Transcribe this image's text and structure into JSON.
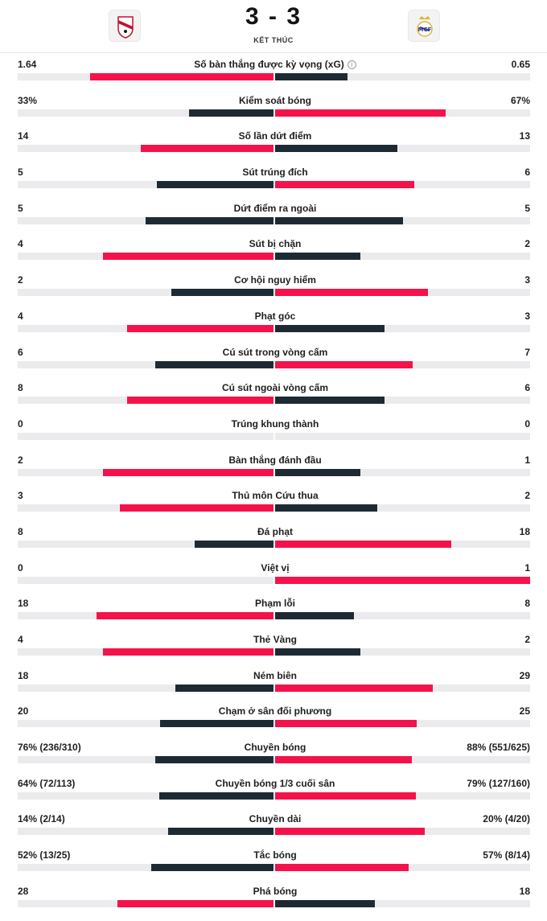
{
  "match": {
    "score": "3 - 3",
    "status": "KẾT THÚC",
    "home_crest_icon": "rayo-vallecano-crest-icon",
    "away_crest_icon": "real-madrid-crest-icon"
  },
  "colors": {
    "red": "#f5124a",
    "dark": "#1e2a33",
    "track": "#ebebed"
  },
  "stats": [
    {
      "label": "Số bàn thắng được kỳ vọng (xG)",
      "home": "1.64",
      "away": "0.65",
      "home_share": 0.716,
      "away_share": 0.284,
      "info_icon": "info-icon",
      "info_glyph": "i"
    },
    {
      "label": "Kiểm soát bóng",
      "home": "33%",
      "away": "67%",
      "home_share": 0.33,
      "away_share": 0.67
    },
    {
      "label": "Số lần dứt điểm",
      "home": "14",
      "away": "13",
      "home_share": 0.519,
      "away_share": 0.481
    },
    {
      "label": "Sút trúng đích",
      "home": "5",
      "away": "6",
      "home_share": 0.455,
      "away_share": 0.545
    },
    {
      "label": "Dứt điểm ra ngoài",
      "home": "5",
      "away": "5",
      "home_share": 0.5,
      "away_share": 0.5
    },
    {
      "label": "Sút bị chặn",
      "home": "4",
      "away": "2",
      "home_share": 0.667,
      "away_share": 0.333
    },
    {
      "label": "Cơ hội nguy hiểm",
      "home": "2",
      "away": "3",
      "home_share": 0.4,
      "away_share": 0.6
    },
    {
      "label": "Phạt góc",
      "home": "4",
      "away": "3",
      "home_share": 0.571,
      "away_share": 0.429
    },
    {
      "label": "Cú sút trong vòng cấm",
      "home": "6",
      "away": "7",
      "home_share": 0.462,
      "away_share": 0.538
    },
    {
      "label": "Cú sút ngoài vòng cấm",
      "home": "8",
      "away": "6",
      "home_share": 0.571,
      "away_share": 0.429
    },
    {
      "label": "Trúng khung thành",
      "home": "0",
      "away": "0",
      "home_share": 0,
      "away_share": 0
    },
    {
      "label": "Bàn thắng đánh đầu",
      "home": "2",
      "away": "1",
      "home_share": 0.667,
      "away_share": 0.333
    },
    {
      "label": "Thủ môn Cứu thua",
      "home": "3",
      "away": "2",
      "home_share": 0.6,
      "away_share": 0.4
    },
    {
      "label": "Đá phạt",
      "home": "8",
      "away": "18",
      "home_share": 0.308,
      "away_share": 0.692
    },
    {
      "label": "Việt vị",
      "home": "0",
      "away": "1",
      "home_share": 0,
      "away_share": 1
    },
    {
      "label": "Phạm lỗi",
      "home": "18",
      "away": "8",
      "home_share": 0.692,
      "away_share": 0.308
    },
    {
      "label": "Thẻ Vàng",
      "home": "4",
      "away": "2",
      "home_share": 0.667,
      "away_share": 0.333
    },
    {
      "label": "Ném biên",
      "home": "18",
      "away": "29",
      "home_share": 0.383,
      "away_share": 0.617
    },
    {
      "label": "Chạm ở sân đối phương",
      "home": "20",
      "away": "25",
      "home_share": 0.444,
      "away_share": 0.556
    },
    {
      "label": "Chuyền bóng",
      "home": "76% (236/310)",
      "away": "88% (551/625)",
      "home_share": 0.463,
      "away_share": 0.537
    },
    {
      "label": "Chuyền bóng 1/3 cuối sân",
      "home": "64% (72/113)",
      "away": "79% (127/160)",
      "home_share": 0.448,
      "away_share": 0.552
    },
    {
      "label": "Chuyền dài",
      "home": "14% (2/14)",
      "away": "20% (4/20)",
      "home_share": 0.412,
      "away_share": 0.588
    },
    {
      "label": "Tắc bóng",
      "home": "52% (13/25)",
      "away": "57% (8/14)",
      "home_share": 0.477,
      "away_share": 0.523
    },
    {
      "label": "Phá bóng",
      "home": "28",
      "away": "18",
      "home_share": 0.609,
      "away_share": 0.391
    }
  ]
}
